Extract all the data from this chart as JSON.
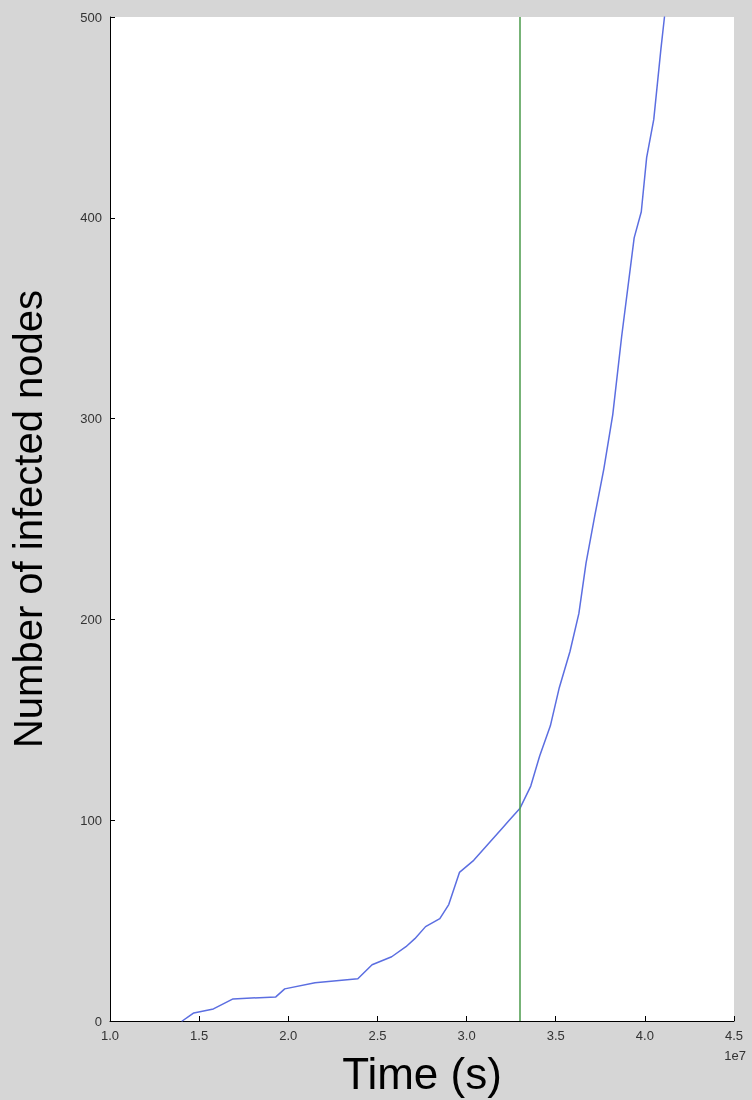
{
  "chart_data": {
    "type": "line",
    "xlabel": "Time (s)",
    "ylabel": "Number of infected nodes",
    "annotations": [
      "1e7"
    ],
    "series": [
      {
        "color": "#5b6ee1",
        "x": [
          1.405,
          1.47,
          1.58,
          1.69,
          1.93,
          1.98,
          2.15,
          2.39,
          2.47,
          2.58,
          2.66,
          2.71,
          2.77,
          2.85,
          2.9,
          2.96,
          3.04,
          3.12,
          3.2,
          3.3,
          3.36,
          3.41,
          3.47,
          3.52,
          3.58,
          3.63,
          3.67,
          3.72,
          3.77,
          3.82,
          3.87,
          3.94,
          3.98,
          4.01,
          4.05,
          4.09,
          4.11
        ],
        "values": [
          0,
          4,
          6,
          11,
          12,
          16,
          19,
          21,
          28,
          32,
          37,
          41,
          47,
          51,
          58,
          74,
          80,
          88,
          96,
          106,
          117,
          132,
          147,
          166,
          184,
          203,
          228,
          252,
          275,
          302,
          341,
          390,
          403,
          430,
          449,
          484,
          500
        ]
      }
    ],
    "ref_lines": [
      {
        "axis": "x",
        "value": 3.3,
        "color": "#4a9a4a"
      }
    ],
    "xlim": [
      1,
      4.5
    ],
    "xticks": [
      {
        "value": 1,
        "label": "1.0"
      },
      {
        "value": 1.5,
        "label": "1.5"
      },
      {
        "value": 2,
        "label": "2.0"
      },
      {
        "value": 2.5,
        "label": "2.5"
      },
      {
        "value": 3,
        "label": "3.0"
      },
      {
        "value": 3.5,
        "label": "3.5"
      },
      {
        "value": 4,
        "label": "4.0"
      },
      {
        "value": 4.5,
        "label": "4.5"
      }
    ],
    "ylim": [
      0,
      500
    ],
    "yticks": [
      0,
      100,
      200,
      300,
      400,
      500
    ],
    "grid": false,
    "marker": "none",
    "line_style": "solid"
  }
}
